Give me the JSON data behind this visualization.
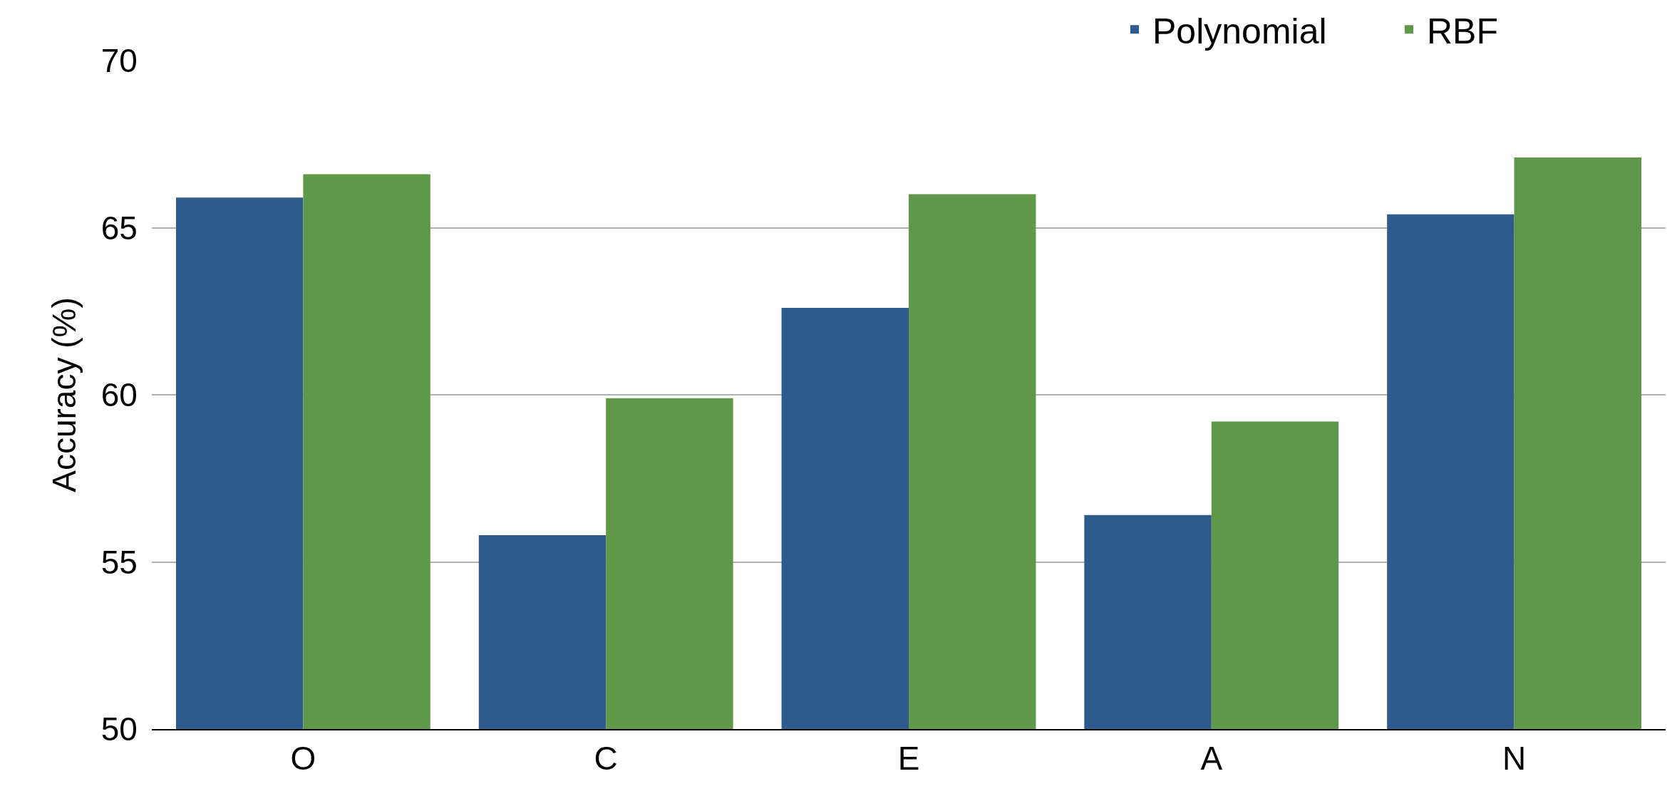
{
  "chart_data": {
    "type": "bar",
    "ylabel": "Accuracy (%)",
    "categories": [
      "O",
      "C",
      "E",
      "A",
      "N"
    ],
    "series": [
      {
        "name": "Polynomial",
        "color": "#2e5a8c",
        "values": [
          65.9,
          55.8,
          62.6,
          56.4,
          65.4
        ]
      },
      {
        "name": "RBF",
        "color": "#5e9848",
        "values": [
          66.6,
          59.9,
          66.0,
          59.2,
          67.1
        ]
      }
    ],
    "ylim": [
      50,
      70
    ],
    "yticks": [
      50,
      55,
      60,
      65,
      70
    ],
    "grid": "y",
    "legend": "top right"
  }
}
